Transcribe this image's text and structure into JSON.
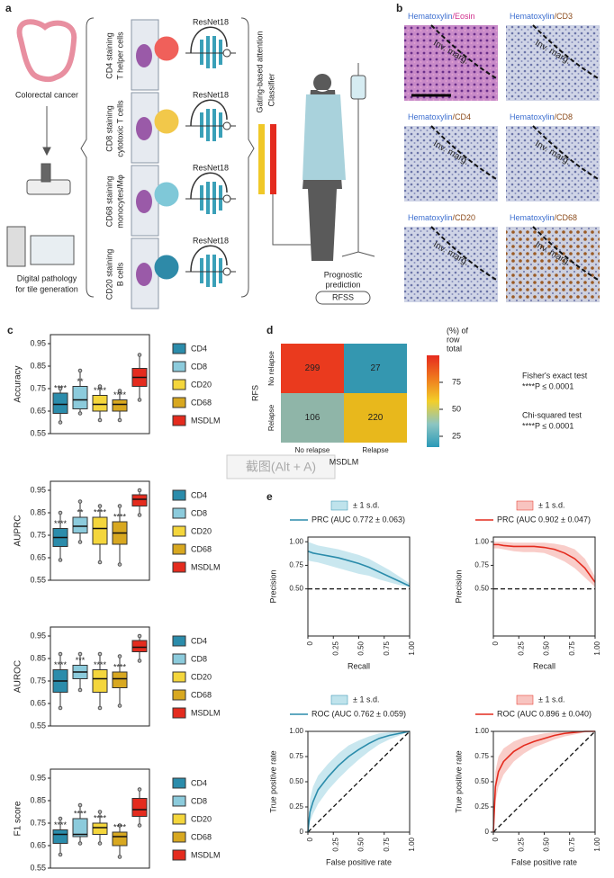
{
  "panel_a": {
    "label": "a",
    "colorectal": "Colorectal cancer",
    "digital": [
      "Digital pathology",
      "for tile generation"
    ],
    "stains": [
      {
        "lines": [
          "CD4 staining",
          "T helper cells"
        ],
        "model": "ResNet18",
        "color": "#f0605a"
      },
      {
        "lines": [
          "CD8 staining",
          "cytotoxic T cells"
        ],
        "model": "ResNet18",
        "color": "#f2c84a"
      },
      {
        "lines": [
          "CD68 staining",
          "monocytes/Mφ"
        ],
        "model": "ResNet18",
        "color": "#7fc8d8"
      },
      {
        "lines": [
          "CD20 staining",
          "B cells"
        ],
        "model": "ResNet18",
        "color": "#2e8aa8"
      }
    ],
    "attention": "Gating-based attention",
    "classifier": "Classifier",
    "prediction": [
      "Prognostic",
      "prediction"
    ],
    "output": "RFSS"
  },
  "panel_b": {
    "label": "b",
    "stain": "Hematoxylin",
    "stain_color": "#3d6fd0",
    "tiles": [
      {
        "counter": "/Eosin",
        "counter_color": "#d0308c",
        "annotation": "Inv. marg."
      },
      {
        "counter": "/CD3",
        "counter_color": "#8b4a1a",
        "annotation": "Inv. marg."
      },
      {
        "counter": "/CD4",
        "counter_color": "#8b4a1a",
        "annotation": "Inv. marg."
      },
      {
        "counter": "/CD8",
        "counter_color": "#8b4a1a",
        "annotation": "Inv. marg."
      },
      {
        "counter": "/CD20",
        "counter_color": "#8b4a1a",
        "annotation": "Inv. marg."
      },
      {
        "counter": "/CD68",
        "counter_color": "#8b4a1a",
        "annotation": "Inv. marg."
      }
    ]
  },
  "watermark": "截图(Alt + A)",
  "chart_data": [
    {
      "type": "box",
      "panel": "c",
      "ylabel": "Accuracy",
      "ylim": [
        0.55,
        0.99
      ],
      "yticks": [
        0.55,
        0.65,
        0.75,
        0.85,
        0.95
      ],
      "groups": [
        {
          "name": "CD4",
          "color": "#2b8cab",
          "min": 0.6,
          "q1": 0.64,
          "median": 0.68,
          "q3": 0.73,
          "max": 0.75,
          "significance": "****"
        },
        {
          "name": "CD8",
          "color": "#8ccbdc",
          "min": 0.64,
          "q1": 0.66,
          "median": 0.7,
          "q3": 0.76,
          "max": 0.83,
          "significance": "**"
        },
        {
          "name": "CD20",
          "color": "#f4d63c",
          "min": 0.61,
          "q1": 0.65,
          "median": 0.68,
          "q3": 0.72,
          "max": 0.76,
          "significance": "****"
        },
        {
          "name": "CD68",
          "color": "#d8a820",
          "min": 0.61,
          "q1": 0.65,
          "median": 0.68,
          "q3": 0.7,
          "max": 0.74,
          "significance": "****"
        },
        {
          "name": "MSDLM",
          "color": "#e42b1e",
          "min": 0.7,
          "q1": 0.76,
          "median": 0.8,
          "q3": 0.84,
          "max": 0.9
        }
      ]
    },
    {
      "type": "box",
      "ylabel": "AUPRC",
      "ylim": [
        0.55,
        0.99
      ],
      "yticks": [
        0.55,
        0.65,
        0.75,
        0.85,
        0.95
      ],
      "groups": [
        {
          "name": "CD4",
          "color": "#2b8cab",
          "min": 0.64,
          "q1": 0.7,
          "median": 0.74,
          "q3": 0.78,
          "max": 0.85,
          "significance": "****"
        },
        {
          "name": "CD8",
          "color": "#8ccbdc",
          "min": 0.72,
          "q1": 0.76,
          "median": 0.79,
          "q3": 0.83,
          "max": 0.9,
          "significance": "**"
        },
        {
          "name": "CD20",
          "color": "#f4d63c",
          "min": 0.63,
          "q1": 0.71,
          "median": 0.78,
          "q3": 0.83,
          "max": 0.88,
          "significance": "****"
        },
        {
          "name": "CD68",
          "color": "#d8a820",
          "min": 0.62,
          "q1": 0.71,
          "median": 0.76,
          "q3": 0.81,
          "max": 0.88,
          "significance": "****"
        },
        {
          "name": "MSDLM",
          "color": "#e42b1e",
          "min": 0.84,
          "q1": 0.88,
          "median": 0.91,
          "q3": 0.93,
          "max": 0.95
        }
      ]
    },
    {
      "type": "box",
      "ylabel": "AUROC",
      "ylim": [
        0.55,
        0.99
      ],
      "yticks": [
        0.55,
        0.65,
        0.75,
        0.85,
        0.95
      ],
      "groups": [
        {
          "name": "CD4",
          "color": "#2b8cab",
          "min": 0.63,
          "q1": 0.7,
          "median": 0.75,
          "q3": 0.8,
          "max": 0.87,
          "significance": "****"
        },
        {
          "name": "CD8",
          "color": "#8ccbdc",
          "min": 0.71,
          "q1": 0.76,
          "median": 0.79,
          "q3": 0.82,
          "max": 0.87,
          "significance": "***"
        },
        {
          "name": "CD20",
          "color": "#f4d63c",
          "min": 0.63,
          "q1": 0.7,
          "median": 0.76,
          "q3": 0.8,
          "max": 0.87,
          "significance": "****"
        },
        {
          "name": "CD68",
          "color": "#d8a820",
          "min": 0.64,
          "q1": 0.72,
          "median": 0.76,
          "q3": 0.79,
          "max": 0.86,
          "significance": "****"
        },
        {
          "name": "MSDLM",
          "color": "#e42b1e",
          "min": 0.84,
          "q1": 0.88,
          "median": 0.9,
          "q3": 0.93,
          "max": 0.95
        }
      ]
    },
    {
      "type": "box",
      "ylabel": "F1 score",
      "ylim": [
        0.55,
        0.99
      ],
      "yticks": [
        0.55,
        0.65,
        0.75,
        0.85,
        0.95
      ],
      "groups": [
        {
          "name": "CD4",
          "color": "#2b8cab",
          "min": 0.61,
          "q1": 0.66,
          "median": 0.7,
          "q3": 0.72,
          "max": 0.77,
          "significance": "****"
        },
        {
          "name": "CD8",
          "color": "#8ccbdc",
          "min": 0.66,
          "q1": 0.69,
          "median": 0.7,
          "q3": 0.77,
          "max": 0.83,
          "significance": "****"
        },
        {
          "name": "CD20",
          "color": "#f4d63c",
          "min": 0.66,
          "q1": 0.7,
          "median": 0.73,
          "q3": 0.75,
          "max": 0.8,
          "significance": "****"
        },
        {
          "name": "CD68",
          "color": "#d8a820",
          "min": 0.6,
          "q1": 0.65,
          "median": 0.69,
          "q3": 0.71,
          "max": 0.74,
          "significance": "****"
        },
        {
          "name": "MSDLM",
          "color": "#e42b1e",
          "min": 0.74,
          "q1": 0.78,
          "median": 0.81,
          "q3": 0.86,
          "max": 0.9
        }
      ]
    },
    {
      "type": "heatmap",
      "panel": "d",
      "xlabel": "MSDLM",
      "ylabel": "RFS",
      "categories": [
        "No relapse",
        "Relapse"
      ],
      "rows": [
        "No relapse",
        "Relapse"
      ],
      "values": [
        [
          299,
          27
        ],
        [
          106,
          220
        ]
      ],
      "cell_colors": [
        [
          "#ea3a1e",
          "#3497b0"
        ],
        [
          "#8fb5a8",
          "#e8b81c"
        ]
      ],
      "colorbar": {
        "title": [
          "(%) of",
          "row",
          "total"
        ],
        "clim": [
          15,
          100
        ],
        "ticks": [
          25,
          50,
          75
        ],
        "colors": [
          "#2b9ab8",
          "#8cc5c2",
          "#f2cf2a",
          "#ef7a1e",
          "#e62a1e"
        ]
      },
      "annotations": [
        [
          "Fisher's exact test",
          "****P ≤ 0.0001"
        ],
        [
          "Chi-squared test",
          "****P ≤ 0.0001"
        ]
      ]
    },
    {
      "type": "line",
      "panel": "e",
      "xlabel": "Recall",
      "ylabel": "Precision",
      "band_label": "± 1 s.d.",
      "band_color": "#bfe3ec",
      "baseline": 0.5,
      "xlim": [
        0,
        1
      ],
      "ylim": [
        0,
        1.05
      ],
      "xticks": [
        0,
        {
          "value": 0.25,
          "label": "0.25"
        },
        {
          "value": 0.5,
          "label": "0.50"
        },
        {
          "value": 0.75,
          "label": "0.75"
        },
        {
          "value": 1,
          "label": "1.00"
        }
      ],
      "yticks": [
        {
          "value": 0.5,
          "label": "0.50"
        },
        {
          "value": 0.75,
          "label": "0.75"
        },
        {
          "value": 1,
          "label": "1.00"
        }
      ],
      "x": [
        0,
        0.05,
        0.1,
        0.2,
        0.3,
        0.4,
        0.5,
        0.6,
        0.7,
        0.8,
        0.9,
        1.0
      ],
      "series": [
        {
          "name": "PRC (AUC 0.772 ± 0.063)",
          "color": "#2b8cab",
          "values": [
            0.9,
            0.88,
            0.87,
            0.85,
            0.83,
            0.8,
            0.77,
            0.73,
            0.68,
            0.63,
            0.58,
            0.53
          ],
          "lower": [
            0.8,
            0.79,
            0.78,
            0.75,
            0.72,
            0.69,
            0.66,
            0.64,
            0.6,
            0.57,
            0.54,
            0.52
          ],
          "upper": [
            1.0,
            0.98,
            0.96,
            0.94,
            0.92,
            0.89,
            0.86,
            0.82,
            0.76,
            0.7,
            0.63,
            0.56
          ]
        }
      ]
    },
    {
      "type": "line",
      "xlabel": "Recall",
      "ylabel": "Precision",
      "band_label": "± 1 s.d.",
      "band_color": "#f8c4c0",
      "baseline": 0.5,
      "xlim": [
        0,
        1
      ],
      "ylim": [
        0,
        1.05
      ],
      "xticks": [
        0,
        {
          "value": 0.25,
          "label": "0.25"
        },
        {
          "value": 0.5,
          "label": "0.50"
        },
        {
          "value": 0.75,
          "label": "0.75"
        },
        {
          "value": 1,
          "label": "1.00"
        }
      ],
      "yticks": [
        {
          "value": 0.5,
          "label": "0.50"
        },
        {
          "value": 0.75,
          "label": "0.75"
        },
        {
          "value": 1,
          "label": "1.00"
        }
      ],
      "x": [
        0,
        0.05,
        0.1,
        0.2,
        0.3,
        0.4,
        0.5,
        0.6,
        0.7,
        0.8,
        0.9,
        1.0
      ],
      "series": [
        {
          "name": "PRC (AUC 0.902 ± 0.047)",
          "color": "#e42b1e",
          "values": [
            0.97,
            0.97,
            0.96,
            0.95,
            0.95,
            0.95,
            0.94,
            0.92,
            0.88,
            0.82,
            0.72,
            0.57
          ],
          "lower": [
            0.93,
            0.93,
            0.92,
            0.9,
            0.89,
            0.89,
            0.88,
            0.84,
            0.79,
            0.72,
            0.62,
            0.52
          ],
          "upper": [
            1,
            1,
            1,
            0.99,
            0.99,
            0.99,
            0.99,
            0.98,
            0.96,
            0.92,
            0.82,
            0.63
          ]
        }
      ]
    },
    {
      "type": "line",
      "xlabel": "False positive rate",
      "ylabel": "True positive rate",
      "band_label": "± 1 s.d.",
      "band_color": "#bfe3ec",
      "diagonal": true,
      "xlim": [
        0,
        1
      ],
      "ylim": [
        0,
        1
      ],
      "xticks": [
        0,
        {
          "value": 0.25,
          "label": "0.25"
        },
        {
          "value": 0.5,
          "label": "0.50"
        },
        {
          "value": 0.75,
          "label": "0.75"
        },
        {
          "value": 1,
          "label": "1.00"
        }
      ],
      "yticks": [
        0,
        {
          "value": 0.25,
          "label": "0.25"
        },
        {
          "value": 0.5,
          "label": "0.50"
        },
        {
          "value": 0.75,
          "label": "0.75"
        },
        {
          "value": 1,
          "label": "1.00"
        }
      ],
      "x": [
        0,
        0.02,
        0.05,
        0.1,
        0.2,
        0.3,
        0.4,
        0.5,
        0.6,
        0.7,
        0.8,
        0.9,
        1
      ],
      "series": [
        {
          "name": "ROC (AUC 0.762 ± 0.059)",
          "color": "#2b8cab",
          "values": [
            0,
            0.2,
            0.3,
            0.42,
            0.55,
            0.66,
            0.75,
            0.82,
            0.88,
            0.93,
            0.96,
            0.98,
            1
          ],
          "lower": [
            0,
            0.1,
            0.18,
            0.28,
            0.42,
            0.53,
            0.63,
            0.72,
            0.8,
            0.87,
            0.92,
            0.96,
            1
          ],
          "upper": [
            0.05,
            0.32,
            0.45,
            0.56,
            0.68,
            0.78,
            0.86,
            0.91,
            0.95,
            0.98,
            0.99,
            1,
            1
          ]
        }
      ]
    },
    {
      "type": "line",
      "xlabel": "False positive rate",
      "ylabel": "True positive rate",
      "band_label": "± 1 s.d.",
      "band_color": "#f8c4c0",
      "diagonal": true,
      "xlim": [
        0,
        1
      ],
      "ylim": [
        0,
        1
      ],
      "xticks": [
        0,
        {
          "value": 0.25,
          "label": "0.25"
        },
        {
          "value": 0.5,
          "label": "0.50"
        },
        {
          "value": 0.75,
          "label": "0.75"
        },
        {
          "value": 1,
          "label": "1.00"
        }
      ],
      "yticks": [
        0,
        {
          "value": 0.25,
          "label": "0.25"
        },
        {
          "value": 0.5,
          "label": "0.50"
        },
        {
          "value": 0.75,
          "label": "0.75"
        },
        {
          "value": 1,
          "label": "1.00"
        }
      ],
      "x": [
        0,
        0.02,
        0.05,
        0.1,
        0.2,
        0.3,
        0.4,
        0.5,
        0.6,
        0.7,
        0.8,
        0.9,
        1
      ],
      "series": [
        {
          "name": "ROC (AUC 0.896 ± 0.040)",
          "color": "#e42b1e",
          "values": [
            0,
            0.45,
            0.6,
            0.7,
            0.8,
            0.86,
            0.9,
            0.93,
            0.96,
            0.98,
            0.99,
            1,
            1
          ],
          "lower": [
            0,
            0.3,
            0.45,
            0.57,
            0.7,
            0.78,
            0.84,
            0.88,
            0.92,
            0.95,
            0.97,
            0.99,
            1
          ],
          "upper": [
            0.1,
            0.6,
            0.75,
            0.83,
            0.9,
            0.94,
            0.96,
            0.98,
            0.99,
            1,
            1,
            1,
            1
          ]
        }
      ]
    }
  ]
}
